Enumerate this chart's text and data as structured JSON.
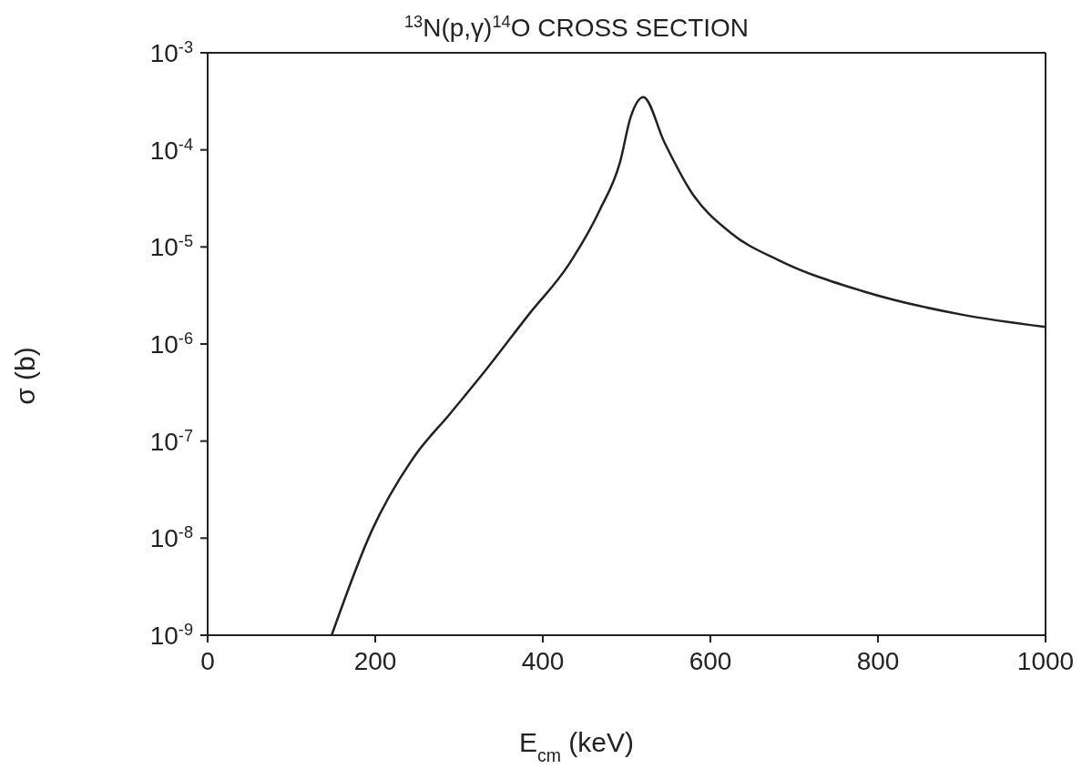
{
  "chart_data": {
    "type": "line",
    "title": "$^{13}$N(p,γ)$^{14}$O CROSS SECTION",
    "xlabel": "E$_{cm}$ (keV)",
    "ylabel": "σ (b)",
    "log": "y",
    "legend": false,
    "marker": "none",
    "line_style": "solid",
    "xlim": [
      0,
      1000
    ],
    "xticks": [
      0,
      200,
      400,
      600,
      800,
      1000
    ],
    "ylim": [
      1e-09,
      0.001
    ],
    "yticks": [
      {
        "value": 1e-09,
        "label": "10$^{-9}$"
      },
      {
        "value": 1e-08,
        "label": "10$^{-8}$"
      },
      {
        "value": 1e-07,
        "label": "10$^{-7}$"
      },
      {
        "value": 1e-06,
        "label": "10$^{-6}$"
      },
      {
        "value": 1e-05,
        "label": "10$^{-5}$"
      },
      {
        "value": 0.0001,
        "label": "10$^{-4}$"
      },
      {
        "value": 0.001,
        "label": "10$^{-3}$"
      }
    ],
    "series": [
      {
        "color": "#222222",
        "x": [
          148,
          196,
          247,
          289,
          332,
          383,
          431,
          468,
          492,
          505,
          520,
          545,
          577,
          624,
          683,
          782,
          901,
          1000
        ],
        "values": [
          1e-09,
          1.2e-08,
          7e-08,
          1.9e-07,
          5.4e-07,
          2e-06,
          6.6e-06,
          2.4e-05,
          7.4e-05,
          0.00022,
          0.00035,
          0.00012,
          3.7e-05,
          1.4e-05,
          7.2e-06,
          3.5e-06,
          2e-06,
          1.5e-06
        ]
      }
    ]
  }
}
